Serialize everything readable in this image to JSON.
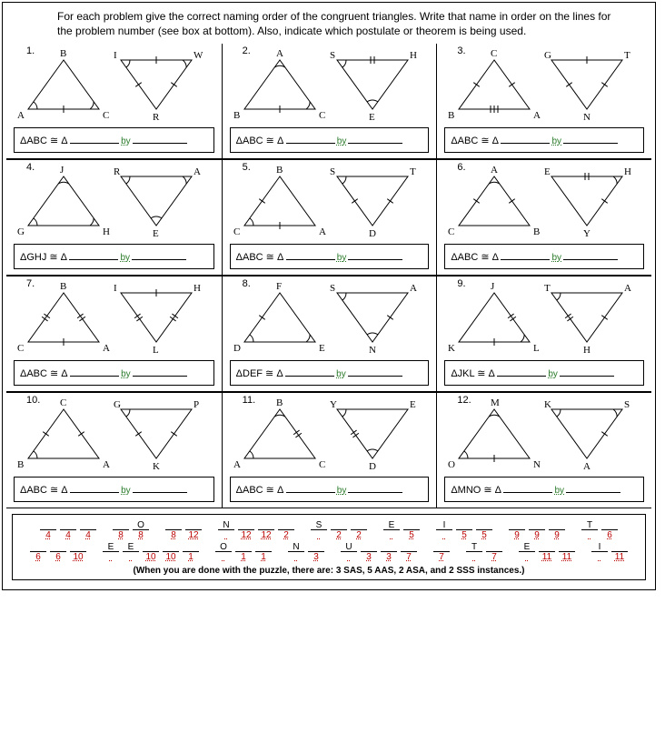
{
  "instructions": "For each problem give the correct naming order of the congruent triangles. Write that name in order on the lines for the problem number (see box at bottom). Also, indicate which postulate or theorem is being used.",
  "by_label": "by",
  "problems": [
    {
      "n": "1.",
      "ans": "ΔABC ≅ Δ",
      "t1": {
        "type": "up",
        "v": [
          "B",
          "A",
          "C"
        ],
        "marks": [
          "tick-b",
          "angle-l",
          "angle-r"
        ]
      },
      "t2": {
        "type": "down",
        "v": [
          "I",
          "W",
          "R"
        ],
        "marks": [
          "tick-t",
          "angle-tl",
          "angle-tr",
          "tick-l",
          "tick-r"
        ]
      }
    },
    {
      "n": "2.",
      "ans": "ΔABC ≅ Δ",
      "t1": {
        "type": "up",
        "v": [
          "A",
          "B",
          "C"
        ],
        "marks": [
          "angle-t",
          "angle-r",
          "tick-b"
        ]
      },
      "t2": {
        "type": "down",
        "v": [
          "S",
          "H",
          "E"
        ],
        "marks": [
          "tick-t2",
          "angle-tl",
          "angle-b"
        ]
      }
    },
    {
      "n": "3.",
      "ans": "ΔABC ≅ Δ",
      "t1": {
        "type": "up",
        "v": [
          "C",
          "B",
          "A"
        ],
        "marks": [
          "tick-l",
          "tick-r",
          "tick-b3"
        ]
      },
      "t2": {
        "type": "down",
        "v": [
          "G",
          "T",
          "N"
        ],
        "marks": [
          "tick-t",
          "tick-l",
          "tick-r"
        ]
      }
    },
    {
      "n": "4.",
      "ans": "ΔGHJ ≅ Δ",
      "t1": {
        "type": "up",
        "v": [
          "J",
          "G",
          "H"
        ],
        "marks": [
          "angle-t",
          "angle-l",
          "angle-r"
        ]
      },
      "t2": {
        "type": "down",
        "v": [
          "R",
          "A",
          "E"
        ],
        "marks": [
          "angle-tl",
          "angle-tr",
          "angle-b"
        ]
      }
    },
    {
      "n": "5.",
      "ans": "ΔABC ≅ Δ",
      "t1": {
        "type": "up",
        "v": [
          "B",
          "C",
          "A"
        ],
        "marks": [
          "angle-l",
          "tick-l",
          "tick-b"
        ]
      },
      "t2": {
        "type": "down",
        "v": [
          "S",
          "T",
          "D"
        ],
        "marks": [
          "angle-tl",
          "tick-l",
          "tick-r"
        ]
      }
    },
    {
      "n": "6.",
      "ans": "ΔABC ≅ Δ",
      "t1": {
        "type": "up",
        "v": [
          "A",
          "C",
          "B"
        ],
        "marks": [
          "tick-l",
          "tick-r",
          "angle-t"
        ]
      },
      "t2": {
        "type": "down",
        "v": [
          "E",
          "H",
          "Y"
        ],
        "marks": [
          "tick-t2",
          "angle-tr",
          "tick-r"
        ]
      }
    },
    {
      "n": "7.",
      "ans": "ΔABC ≅ Δ",
      "t1": {
        "type": "up",
        "v": [
          "B",
          "C",
          "A"
        ],
        "marks": [
          "tick-l2",
          "tick-r2",
          "tick-b"
        ]
      },
      "t2": {
        "type": "down",
        "v": [
          "I",
          "H",
          "L"
        ],
        "marks": [
          "tick-t",
          "tick-l2",
          "tick-r2"
        ]
      }
    },
    {
      "n": "8.",
      "ans": "ΔDEF ≅ Δ",
      "t1": {
        "type": "up",
        "v": [
          "F",
          "D",
          "E"
        ],
        "marks": [
          "angle-l",
          "angle-r",
          "tick-l"
        ]
      },
      "t2": {
        "type": "down",
        "v": [
          "S",
          "A",
          "N"
        ],
        "marks": [
          "angle-tl",
          "angle-b",
          "tick-r"
        ]
      }
    },
    {
      "n": "9.",
      "ans": "ΔJKL ≅ Δ",
      "t1": {
        "type": "up",
        "v": [
          "J",
          "K",
          "L"
        ],
        "marks": [
          "tick-r2",
          "tick-b",
          "angle-r"
        ]
      },
      "t2": {
        "type": "down",
        "v": [
          "T",
          "A",
          "H"
        ],
        "marks": [
          "angle-tl",
          "tick-l2",
          "tick-r"
        ]
      }
    },
    {
      "n": "10.",
      "ans": "ΔABC ≅ Δ",
      "t1": {
        "type": "up",
        "v": [
          "C",
          "B",
          "A"
        ],
        "marks": [
          "angle-l",
          "tick-l",
          "tick-r"
        ]
      },
      "t2": {
        "type": "down",
        "v": [
          "G",
          "P",
          "K"
        ],
        "marks": [
          "angle-tl",
          "tick-l",
          "tick-r"
        ]
      }
    },
    {
      "n": "11.",
      "ans": "ΔABC ≅ Δ",
      "t1": {
        "type": "up",
        "v": [
          "B",
          "A",
          "C"
        ],
        "marks": [
          "angle-l",
          "angle-t",
          "tick-r2"
        ]
      },
      "t2": {
        "type": "down",
        "v": [
          "Y",
          "E",
          "D"
        ],
        "marks": [
          "angle-tl",
          "tick-l2",
          "angle-b"
        ]
      }
    },
    {
      "n": "12.",
      "ans": "ΔMNO ≅ Δ",
      "t1": {
        "type": "up",
        "v": [
          "M",
          "O",
          "N"
        ],
        "marks": [
          "angle-t",
          "angle-l",
          "tick-b"
        ]
      },
      "t2": {
        "type": "down",
        "v": [
          "K",
          "S",
          "A"
        ],
        "marks": [
          "angle-tl",
          "angle-tr",
          "tick-r"
        ]
      }
    }
  ],
  "puzzle": {
    "line1": [
      {
        "t": "",
        "b": "4"
      },
      {
        "t": "",
        "b": "4"
      },
      {
        "t": "",
        "b": "4"
      },
      {
        "gap": true
      },
      {
        "t": "",
        "b": "8"
      },
      {
        "t": "O",
        "b": "8"
      },
      {
        "gap": true
      },
      {
        "t": "",
        "b": "8"
      },
      {
        "t": "",
        "b": "12"
      },
      {
        "gap": true
      },
      {
        "t": "N",
        "b": ""
      },
      {
        "t": "",
        "b": "12"
      },
      {
        "t": "",
        "b": "12"
      },
      {
        "t": "",
        "b": "2"
      },
      {
        "gap": true
      },
      {
        "t": "S",
        "b": ""
      },
      {
        "t": "",
        "b": "2"
      },
      {
        "t": "",
        "b": "2"
      },
      {
        "gap": true
      },
      {
        "t": "E",
        "b": ""
      },
      {
        "t": "",
        "b": "5"
      },
      {
        "gap": true
      },
      {
        "t": "I",
        "b": ""
      },
      {
        "t": "",
        "b": "5"
      },
      {
        "t": "",
        "b": "5"
      },
      {
        "gap": true
      },
      {
        "t": "",
        "b": "9"
      },
      {
        "t": "",
        "b": "9"
      },
      {
        "t": "",
        "b": "9"
      },
      {
        "gap": true
      },
      {
        "t": "T",
        "b": ""
      },
      {
        "t": "",
        "b": "6"
      }
    ],
    "line2": [
      {
        "t": "",
        "b": "6"
      },
      {
        "t": "",
        "b": "6"
      },
      {
        "t": "",
        "b": "10"
      },
      {
        "gap": true
      },
      {
        "t": "E",
        "b": ""
      },
      {
        "t": "E",
        "b": ""
      },
      {
        "t": "",
        "b": "10"
      },
      {
        "t": "",
        "b": "10"
      },
      {
        "t": "",
        "b": "1"
      },
      {
        "gap": true
      },
      {
        "t": "O",
        "b": ""
      },
      {
        "t": "",
        "b": "1"
      },
      {
        "t": "",
        "b": "1"
      },
      {
        "gap": true
      },
      {
        "t": "N",
        "b": ""
      },
      {
        "t": "",
        "b": "3"
      },
      {
        "gap": true
      },
      {
        "t": "U",
        "b": ""
      },
      {
        "t": "",
        "b": "3"
      },
      {
        "t": "",
        "b": "3"
      },
      {
        "t": "",
        "b": "7"
      },
      {
        "gap": true
      },
      {
        "t": "",
        "b": "7"
      },
      {
        "gap": true
      },
      {
        "t": "T",
        "b": ""
      },
      {
        "t": "",
        "b": "7"
      },
      {
        "gap": true
      },
      {
        "t": "E",
        "b": ""
      },
      {
        "t": "",
        "b": "11"
      },
      {
        "t": "",
        "b": "11"
      },
      {
        "gap": true
      },
      {
        "t": "I",
        "b": ""
      },
      {
        "t": "",
        "b": "11"
      }
    ],
    "hint": "(When you are done with the puzzle, there are: 3 SAS, 5 AAS, 2 ASA, and 2 SSS instances.)"
  },
  "style": {
    "stroke": "#000",
    "stroke_width": 1,
    "font": "11px Verdana"
  }
}
